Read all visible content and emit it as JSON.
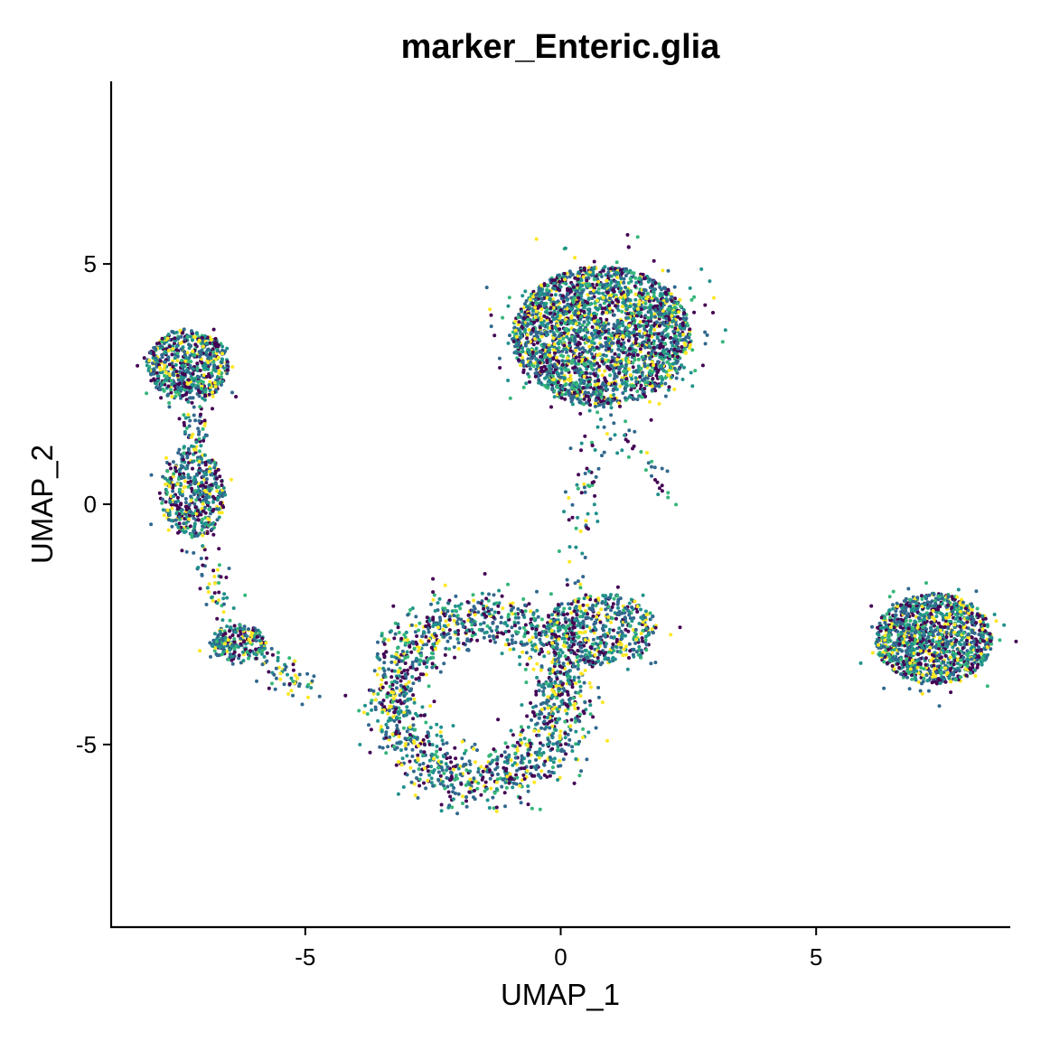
{
  "chart_data": {
    "type": "scatter",
    "title": "marker_Enteric.glia",
    "xlabel": "UMAP_1",
    "ylabel": "UMAP_2",
    "xlim": [
      -8.8,
      8.8
    ],
    "ylim": [
      -8.8,
      8.8
    ],
    "x_ticks": [
      -5,
      0,
      5
    ],
    "y_ticks": [
      -5,
      0,
      5
    ],
    "x_tick_labels": [
      "-5",
      "0",
      "5"
    ],
    "y_tick_labels": [
      "-5",
      "0",
      "5"
    ],
    "grid": false,
    "legend": "none",
    "colormap": [
      "#440154",
      "#31688e",
      "#21918c",
      "#35b779",
      "#fde725"
    ],
    "clusters": [
      {
        "name": "top-center cluster",
        "center": [
          0.8,
          3.5
        ],
        "spread": [
          1.75,
          1.45
        ],
        "count": 2600,
        "shape": "disc"
      },
      {
        "name": "right cluster",
        "center": [
          7.3,
          -2.8
        ],
        "spread": [
          1.15,
          0.95
        ],
        "count": 1300,
        "shape": "disc"
      },
      {
        "name": "top-left cluster",
        "center": [
          -7.3,
          2.9
        ],
        "spread": [
          0.8,
          0.75
        ],
        "count": 650,
        "shape": "disc"
      },
      {
        "name": "mid-left cluster",
        "center": [
          -7.2,
          0.2
        ],
        "spread": [
          0.65,
          0.9
        ],
        "count": 450,
        "shape": "disc"
      },
      {
        "name": "bottom-left cluster",
        "center": [
          -6.3,
          -2.9
        ],
        "spread": [
          0.55,
          0.4
        ],
        "count": 220,
        "shape": "disc"
      },
      {
        "name": "bottom-center ring",
        "center": [
          -1.6,
          -4.0
        ],
        "spread": [
          1.7,
          1.7
        ],
        "count": 1500,
        "shape": "ring"
      },
      {
        "name": "bottom-center right blob",
        "center": [
          0.8,
          -2.6
        ],
        "spread": [
          1.1,
          0.75
        ],
        "count": 500,
        "shape": "disc"
      }
    ]
  }
}
